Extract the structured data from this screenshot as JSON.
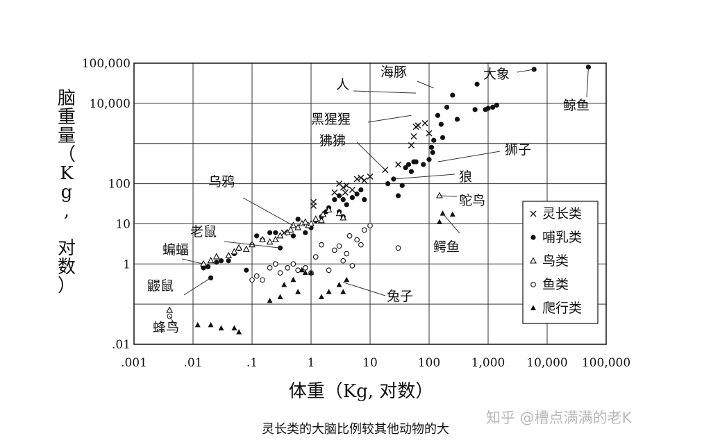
{
  "chart_data": {
    "type": "scatter",
    "log_x": true,
    "log_y": true,
    "xlim": [
      0.001,
      100000
    ],
    "ylim": [
      0.01,
      100000
    ],
    "grid": true,
    "xlabel": "体重（Kg, 对数）",
    "ylabel": "脑重量（Kg, 对数）",
    "x_ticks": [
      ".001",
      ".01",
      ".1",
      "1",
      "10",
      "100",
      "1,000",
      "10,000",
      "100,000"
    ],
    "y_ticks": [
      ".01",
      "1",
      "10",
      "100",
      "10,000",
      "100,000"
    ],
    "legend_position": "right",
    "series": [
      {
        "name": "灵长类",
        "marker": "x",
        "points": [
          [
            0.35,
            6
          ],
          [
            1.1,
            35
          ],
          [
            1.1,
            28
          ],
          [
            2.5,
            60
          ],
          [
            3,
            100
          ],
          [
            3.5,
            80
          ],
          [
            3.8,
            60
          ],
          [
            4,
            90
          ],
          [
            5,
            70
          ],
          [
            6,
            130
          ],
          [
            7,
            140
          ],
          [
            8,
            120
          ],
          [
            10,
            150
          ],
          [
            18,
            220
          ],
          [
            30,
            300
          ],
          [
            50,
            900
          ],
          [
            55,
            1500
          ],
          [
            60,
            2600
          ],
          [
            65,
            2800
          ],
          [
            85,
            3200
          ],
          [
            100,
            1800
          ]
        ]
      },
      {
        "name": "哺乳类",
        "marker": "dot",
        "points": [
          [
            0.015,
            0.8
          ],
          [
            0.018,
            0.85
          ],
          [
            0.02,
            0.45
          ],
          [
            0.025,
            1.1
          ],
          [
            0.03,
            1.2
          ],
          [
            0.04,
            1.2
          ],
          [
            0.05,
            1.8
          ],
          [
            0.06,
            2.4
          ],
          [
            0.08,
            0.7
          ],
          [
            0.1,
            3
          ],
          [
            0.12,
            5
          ],
          [
            0.15,
            4
          ],
          [
            0.2,
            6
          ],
          [
            0.25,
            6
          ],
          [
            0.3,
            2.5
          ],
          [
            0.5,
            5
          ],
          [
            0.6,
            13
          ],
          [
            0.8,
            6
          ],
          [
            1,
            8
          ],
          [
            1.2,
            12
          ],
          [
            1.5,
            15
          ],
          [
            1.8,
            20
          ],
          [
            2,
            25
          ],
          [
            2.5,
            40
          ],
          [
            3,
            20
          ],
          [
            3,
            50
          ],
          [
            3.5,
            15
          ],
          [
            3.5,
            40
          ],
          [
            4,
            30
          ],
          [
            5,
            45
          ],
          [
            6,
            55
          ],
          [
            7,
            70
          ],
          [
            8,
            40
          ],
          [
            20,
            100
          ],
          [
            25,
            130
          ],
          [
            30,
            50
          ],
          [
            35,
            90
          ],
          [
            40,
            250
          ],
          [
            45,
            300
          ],
          [
            50,
            200
          ],
          [
            55,
            350
          ],
          [
            60,
            350
          ],
          [
            80,
            300
          ],
          [
            100,
            400
          ],
          [
            110,
            800
          ],
          [
            115,
            600
          ],
          [
            120,
            1200
          ],
          [
            140,
            5000
          ],
          [
            160,
            3000
          ],
          [
            170,
            1400
          ],
          [
            200,
            8000
          ],
          [
            250,
            16000
          ],
          [
            300,
            4000
          ],
          [
            600,
            7000
          ],
          [
            650,
            30000
          ],
          [
            900,
            7000
          ],
          [
            1000,
            7500
          ],
          [
            1200,
            8000
          ],
          [
            1400,
            9000
          ],
          [
            6000,
            70000
          ],
          [
            50000,
            80000
          ]
        ]
      },
      {
        "name": "鸟类",
        "marker": "triangle",
        "points": [
          [
            0.004,
            0.07
          ],
          [
            0.015,
            1
          ],
          [
            0.02,
            1.2
          ],
          [
            0.025,
            1.5
          ],
          [
            0.04,
            1.6
          ],
          [
            0.05,
            2
          ],
          [
            0.06,
            2.5
          ],
          [
            0.08,
            2.3
          ],
          [
            0.1,
            3
          ],
          [
            0.15,
            4
          ],
          [
            0.2,
            3.5
          ],
          [
            0.25,
            4
          ],
          [
            0.3,
            5
          ],
          [
            0.4,
            6
          ],
          [
            0.45,
            7
          ],
          [
            0.5,
            9
          ],
          [
            0.6,
            8
          ],
          [
            0.7,
            10
          ],
          [
            0.8,
            11
          ],
          [
            0.9,
            9
          ],
          [
            1,
            10
          ],
          [
            1.2,
            13
          ],
          [
            1.5,
            12
          ],
          [
            1.6,
            17
          ],
          [
            2,
            22
          ],
          [
            3,
            18
          ],
          [
            3.5,
            14
          ],
          [
            150,
            50
          ]
        ]
      },
      {
        "name": "鱼类",
        "marker": "circle",
        "points": [
          [
            0.004,
            0.05
          ],
          [
            0.1,
            0.4
          ],
          [
            0.12,
            0.5
          ],
          [
            0.15,
            0.4
          ],
          [
            0.2,
            0.8
          ],
          [
            0.25,
            1
          ],
          [
            0.3,
            0.6
          ],
          [
            0.4,
            0.8
          ],
          [
            0.5,
            1
          ],
          [
            0.6,
            0.7
          ],
          [
            0.8,
            0.8
          ],
          [
            1,
            0.6
          ],
          [
            1.2,
            1.5
          ],
          [
            1.5,
            3
          ],
          [
            2,
            0.7
          ],
          [
            2.5,
            2.2
          ],
          [
            3,
            2.8
          ],
          [
            3.5,
            1.2
          ],
          [
            4,
            1.8
          ],
          [
            4.5,
            5
          ],
          [
            5,
            0.9
          ],
          [
            6,
            4
          ],
          [
            7,
            3
          ],
          [
            8,
            7
          ],
          [
            10,
            9
          ],
          [
            30,
            2.5
          ]
        ]
      },
      {
        "name": "爬行类",
        "marker": "triangle-filled",
        "points": [
          [
            0.012,
            0.03
          ],
          [
            0.02,
            0.03
          ],
          [
            0.03,
            0.025
          ],
          [
            0.05,
            0.025
          ],
          [
            0.06,
            0.02
          ],
          [
            0.2,
            0.12
          ],
          [
            0.3,
            0.15
          ],
          [
            0.35,
            0.3
          ],
          [
            0.5,
            0.4
          ],
          [
            0.6,
            0.2
          ],
          [
            0.7,
            0.7
          ],
          [
            0.8,
            0.6
          ],
          [
            1,
            0.6
          ],
          [
            1.5,
            0.15
          ],
          [
            2,
            0.2
          ],
          [
            3,
            0.3
          ],
          [
            3.5,
            0.2
          ],
          [
            4,
            0.4
          ],
          [
            150,
            11
          ],
          [
            170,
            18
          ],
          [
            250,
            17
          ]
        ]
      }
    ]
  },
  "annotations": {
    "elephant": "大象",
    "dolphin": "海豚",
    "human": "人",
    "whale": "鲸鱼",
    "chimp": "黑猩猩",
    "baboon": "狒狒",
    "lion": "狮子",
    "wolf": "狼",
    "ostrich": "鸵鸟",
    "crow": "乌鸦",
    "rat": "老鼠",
    "bat": "蝙蝠",
    "mole": "鼹鼠",
    "hummingbird": "蜂鸟",
    "crocodile": "鳄鱼",
    "rabbit": "兔子"
  },
  "caption": "灵长类的大脑比例较其他动物的大",
  "watermark": "知乎 @槽点满满的老K"
}
